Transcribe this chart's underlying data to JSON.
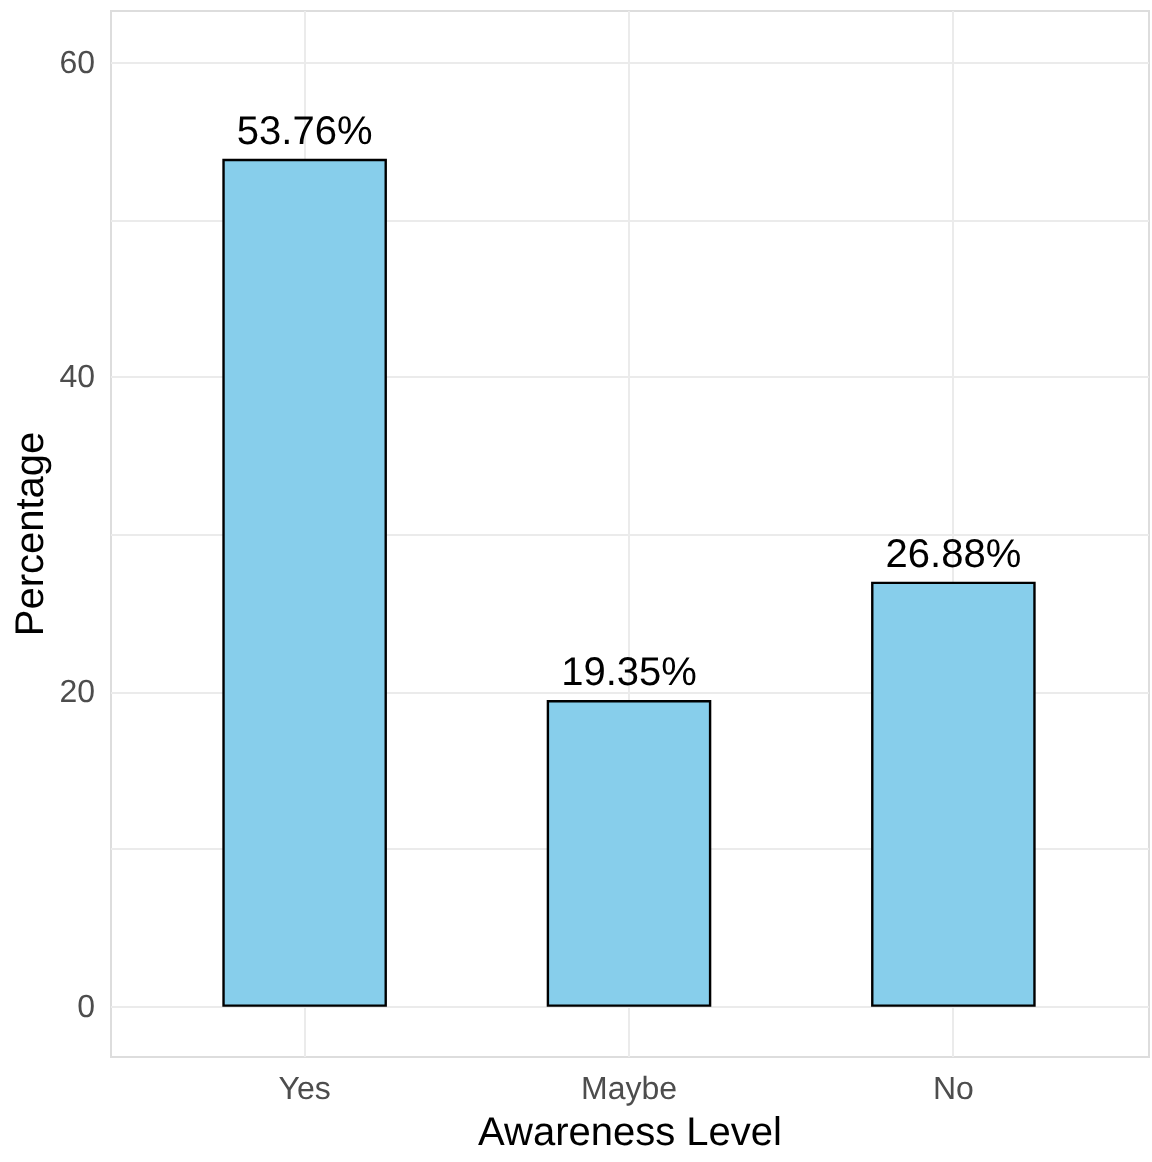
{
  "chart_data": {
    "type": "bar",
    "xlabel": "Awareness Level",
    "ylabel": "Percentage",
    "categories": [
      "Yes",
      "Maybe",
      "No"
    ],
    "values": [
      53.76,
      19.35,
      26.88
    ],
    "color": "#87ceeb",
    "value_labels": [
      "53.76%",
      "19.35%",
      "26.88%"
    ],
    "ylim": [
      -3.2,
      63.3
    ],
    "yticks": [
      0,
      {
        "value": 10,
        "label": null
      },
      20,
      {
        "value": 30,
        "label": null
      },
      40,
      {
        "value": 50,
        "label": null
      },
      60
    ],
    "grid": true
  }
}
